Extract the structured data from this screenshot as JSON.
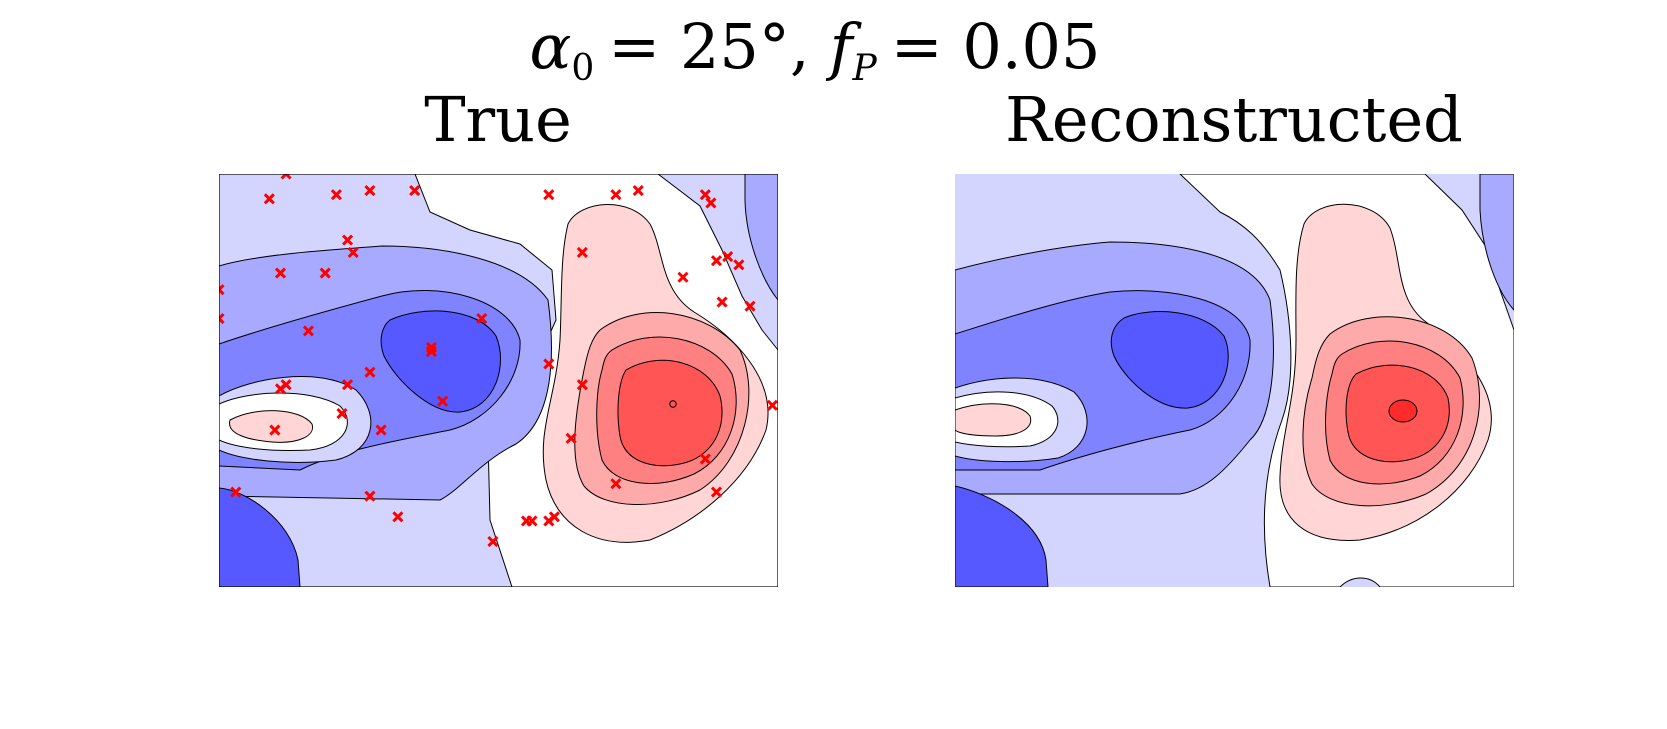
{
  "figure": {
    "suptitle_parts": {
      "alpha": "α",
      "alpha_sub": "0",
      "eq1": "= 25°,",
      "f": "f",
      "f_sub": "P",
      "eq2": "= 0.05"
    }
  },
  "colors": {
    "blue_levels": [
      "#5559ff",
      "#7f83ff",
      "#a7aaff",
      "#d4d5ff"
    ],
    "white_level": "#ffffff",
    "red_levels": [
      "#ffd5d5",
      "#ffaaaa",
      "#ff8080",
      "#ff5555",
      "#ff2b2b"
    ],
    "marker": "#ff0000",
    "contour_line": "#000000"
  },
  "chart_data": [
    {
      "type": "heatmap",
      "title": "True",
      "description": "filled contour plot of a smooth field (blue negative, red positive) with red x markers at sampled points",
      "axes_visible": false,
      "frame": true,
      "samples_marker": "x",
      "samples": [
        [
          0.12,
          0.0
        ],
        [
          0.09,
          0.06
        ],
        [
          0.21,
          0.05
        ],
        [
          0.27,
          0.04
        ],
        [
          0.35,
          0.04
        ],
        [
          0.59,
          0.05
        ],
        [
          0.71,
          0.05
        ],
        [
          0.75,
          0.04
        ],
        [
          0.87,
          0.05
        ],
        [
          0.88,
          0.07
        ],
        [
          0.23,
          0.16
        ],
        [
          0.24,
          0.19
        ],
        [
          0.11,
          0.24
        ],
        [
          0.19,
          0.24
        ],
        [
          0.0,
          0.28
        ],
        [
          0.0,
          0.35
        ],
        [
          0.16,
          0.38
        ],
        [
          0.47,
          0.35
        ],
        [
          0.65,
          0.19
        ],
        [
          0.89,
          0.21
        ],
        [
          0.91,
          0.2
        ],
        [
          0.93,
          0.22
        ],
        [
          0.83,
          0.25
        ],
        [
          0.9,
          0.31
        ],
        [
          0.95,
          0.32
        ],
        [
          0.38,
          0.42
        ],
        [
          0.38,
          0.43
        ],
        [
          0.59,
          0.46
        ],
        [
          0.27,
          0.48
        ],
        [
          0.12,
          0.51
        ],
        [
          0.11,
          0.52
        ],
        [
          0.23,
          0.51
        ],
        [
          0.65,
          0.51
        ],
        [
          0.4,
          0.55
        ],
        [
          0.22,
          0.58
        ],
        [
          0.99,
          0.56
        ],
        [
          0.1,
          0.62
        ],
        [
          0.29,
          0.62
        ],
        [
          0.63,
          0.64
        ],
        [
          0.87,
          0.69
        ],
        [
          0.03,
          0.77
        ],
        [
          0.89,
          0.77
        ],
        [
          0.27,
          0.78
        ],
        [
          0.71,
          0.75
        ],
        [
          0.32,
          0.83
        ],
        [
          0.55,
          0.84
        ],
        [
          0.56,
          0.84
        ],
        [
          0.59,
          0.84
        ],
        [
          0.6,
          0.83
        ],
        [
          0.49,
          0.89
        ]
      ],
      "extremum_marker": [
        0.81,
        0.56
      ]
    },
    {
      "type": "heatmap",
      "title": "Reconstructed",
      "description": "filled contour plot of the reconstructed field",
      "axes_visible": false,
      "frame": false
    }
  ]
}
